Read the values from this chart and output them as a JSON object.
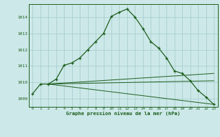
{
  "bg_color": "#cce8e8",
  "grid_color": "#aacece",
  "line_color": "#1a5c1a",
  "title": "Graphe pression niveau de la mer (hPa)",
  "xlim": [
    -0.5,
    23.5
  ],
  "ylim": [
    1008.5,
    1014.8
  ],
  "yticks": [
    1009,
    1010,
    1011,
    1012,
    1013,
    1014
  ],
  "xticks": [
    0,
    1,
    2,
    3,
    4,
    5,
    6,
    7,
    8,
    9,
    10,
    11,
    12,
    13,
    14,
    15,
    16,
    17,
    18,
    19,
    20,
    21,
    22,
    23
  ],
  "main_x": [
    0,
    1,
    2,
    3,
    4,
    5,
    6,
    7,
    8,
    9,
    10,
    11,
    12,
    13,
    14,
    15,
    16,
    17,
    18,
    19,
    20,
    21,
    22,
    23
  ],
  "main_y": [
    1009.3,
    1009.9,
    1009.9,
    1010.2,
    1011.05,
    1011.2,
    1011.5,
    1012.0,
    1012.5,
    1013.0,
    1014.05,
    1014.3,
    1014.5,
    1014.0,
    1013.3,
    1012.5,
    1012.1,
    1011.5,
    1010.7,
    1010.55,
    1010.1,
    1009.5,
    1009.1,
    1008.65
  ],
  "line2_x": [
    2,
    23
  ],
  "line2_y": [
    1009.9,
    1010.1
  ],
  "line3_x": [
    2,
    23
  ],
  "line3_y": [
    1009.9,
    1008.65
  ],
  "line4_x": [
    2,
    23
  ],
  "line4_y": [
    1009.9,
    1010.55
  ]
}
